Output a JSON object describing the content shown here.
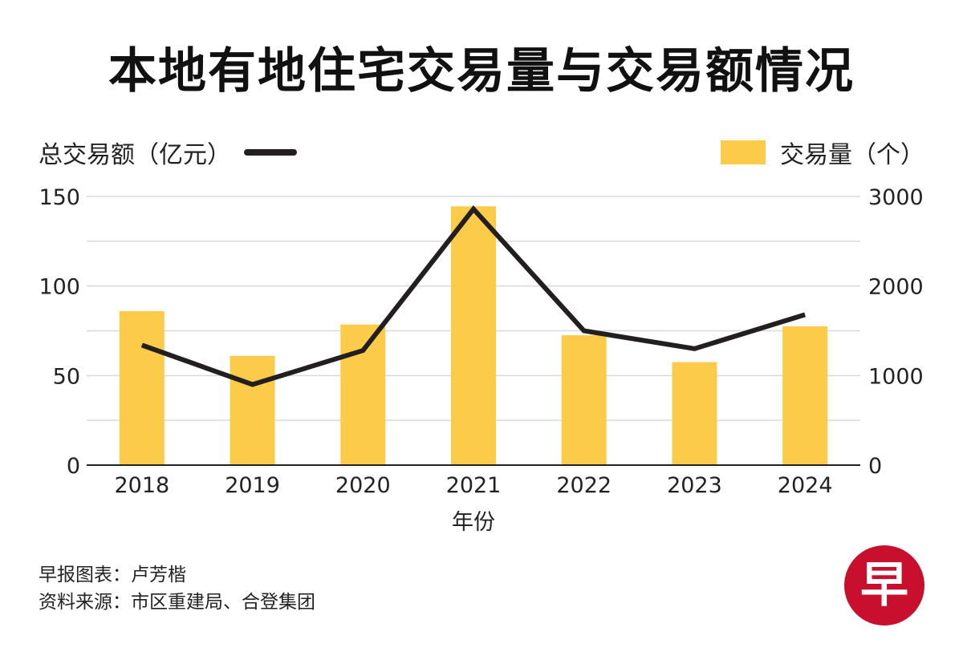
{
  "title": "本地有地住宅交易量与交易额情况",
  "legend": {
    "line_label": "总交易额（亿元）",
    "bar_label": "交易量（个）"
  },
  "colors": {
    "bar": "#FCCB4A",
    "line": "#231F20",
    "grid": "#d9d9d9",
    "logo": "#C8102E"
  },
  "chart_data": {
    "type": "bar+line",
    "title": "本地有地住宅交易量与交易额情况",
    "xlabel": "年份",
    "categories": [
      "2018",
      "2019",
      "2020",
      "2021",
      "2022",
      "2023",
      "2024"
    ],
    "series": [
      {
        "name": "交易量（个）",
        "type": "bar",
        "axis": "right",
        "values": [
          1720,
          1220,
          1570,
          2890,
          1450,
          1150,
          1550
        ]
      },
      {
        "name": "总交易额（亿元）",
        "type": "line",
        "axis": "left",
        "values": [
          67,
          45,
          64,
          143,
          75,
          65,
          84
        ]
      }
    ],
    "y_left": {
      "label": "总交易额（亿元）",
      "lim": [
        0,
        150
      ],
      "ticks": [
        "0",
        "50",
        "100",
        "150"
      ]
    },
    "y_right": {
      "label": "交易量（个）",
      "lim": [
        0,
        3000
      ],
      "ticks": [
        "0",
        "1000",
        "2000",
        "3000"
      ]
    },
    "grid": true
  },
  "footer": {
    "credit": "早报图表：卢芳楷",
    "source": "资料来源：市区重建局、合登集团"
  },
  "logo": {
    "text": "早"
  }
}
